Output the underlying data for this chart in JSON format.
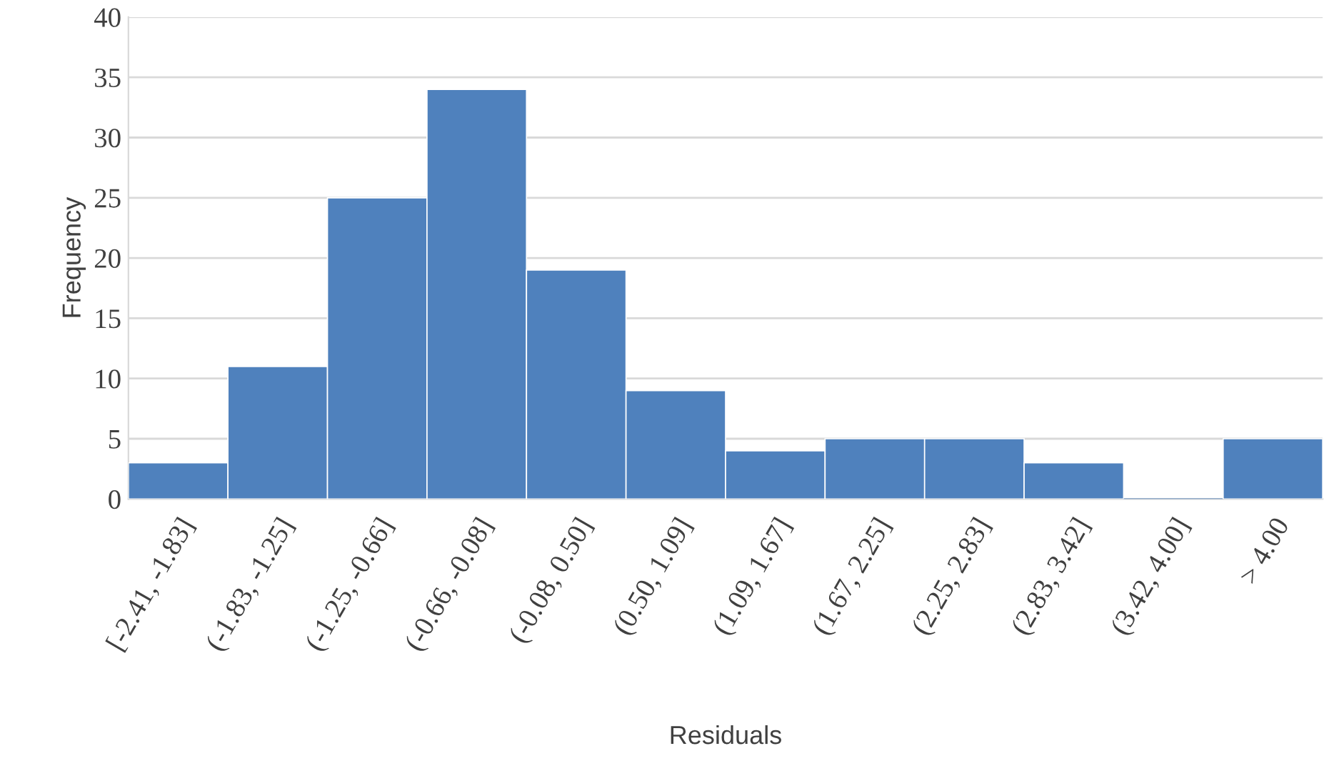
{
  "chart_data": {
    "type": "bar",
    "xlabel": "Residuals",
    "ylabel": "Frequency",
    "categories": [
      "[-2.41, -1.83]",
      "(-1.83, -1.25]",
      "(-1.25, -0.66]",
      "(-0.66, -0.08]",
      "(-0.08, 0.50]",
      "(0.50, 1.09]",
      "(1.09, 1.67]",
      "(1.67, 2.25]",
      "(2.25, 2.83]",
      "(2.83, 3.42]",
      "(3.42, 4.00]",
      "> 4.00"
    ],
    "values": [
      3,
      11,
      25,
      34,
      19,
      9,
      4,
      5,
      5,
      3,
      0,
      5
    ],
    "color": "#4f81bd",
    "ylim": [
      0,
      40
    ],
    "yticks": [
      0,
      5,
      10,
      15,
      20,
      25,
      30,
      35,
      40
    ],
    "grid": "y",
    "legend": false
  }
}
